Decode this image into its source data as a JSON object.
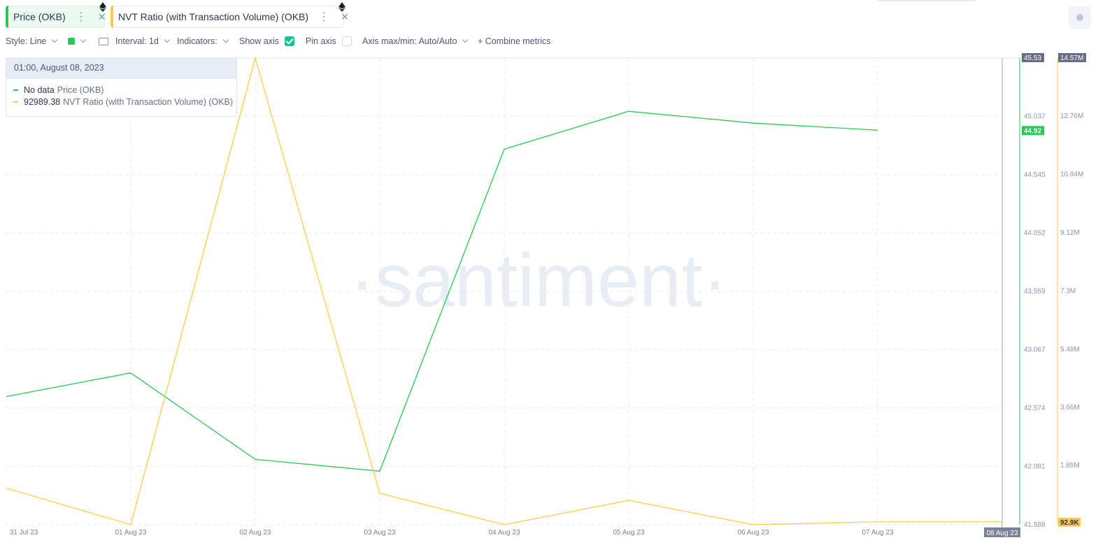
{
  "tabs": [
    {
      "label": "Price (OKB)",
      "color": "#26c953",
      "icon": "ethereum-icon"
    },
    {
      "label": "NVT Ratio (with Transaction Volume) (OKB)",
      "color": "#ffcb47",
      "icon": "ethereum-icon"
    }
  ],
  "toolbar": {
    "style": "Style: Line",
    "interval": "Interval: 1d",
    "indicators": "Indicators:",
    "show_axis": "Show axis",
    "show_axis_checked": true,
    "pin_axis": "Pin axis",
    "pin_axis_checked": false,
    "axis_minmax": "Axis max/min: Auto/Auto",
    "combine": "+ Combine metrics"
  },
  "tooltip": {
    "date": "01:00, August 08, 2023",
    "rows": [
      {
        "value": "No data",
        "name": "Price (OKB)",
        "color": "#26c953"
      },
      {
        "value": "92989.38",
        "name": "NVT Ratio (with Transaction Volume) (OKB)",
        "color": "#ffcb47"
      }
    ]
  },
  "watermark": "·santiment·",
  "chart_data": {
    "type": "line",
    "x": [
      "31 Jul 23",
      "01 Aug 23",
      "02 Aug 23",
      "03 Aug 23",
      "04 Aug 23",
      "05 Aug 23",
      "06 Aug 23",
      "07 Aug 23",
      "08 Aug 23"
    ],
    "series": [
      {
        "name": "Price (OKB)",
        "axis": "left",
        "color": "#26c953",
        "values": [
          42.67,
          42.87,
          42.14,
          42.04,
          44.76,
          45.08,
          44.98,
          44.92,
          null
        ]
      },
      {
        "name": "NVT Ratio (with Transaction Volume) (OKB)",
        "axis": "right",
        "color": "#ffcb47",
        "values": [
          1.14,
          0.0,
          14.57,
          0.98,
          0.0,
          0.76,
          0.0,
          0.09,
          0.09
        ]
      }
    ],
    "left_axis": {
      "ticks": [
        "41.588",
        "42.081",
        "42.574",
        "43.067",
        "43.559",
        "44.052",
        "44.545",
        "45.037"
      ],
      "range": [
        41.588,
        45.53
      ],
      "max_label": "45.53",
      "current_label": "44.92"
    },
    "right_axis": {
      "ticks": [
        "1.85M",
        "3.66M",
        "5.48M",
        "7.3M",
        "9.12M",
        "10.94M",
        "12.76M"
      ],
      "unit": "M",
      "range": [
        0,
        14.57
      ],
      "max_label": "14.57M",
      "current_label": "92.9K"
    },
    "crosshair_label": "08 Aug 23",
    "grid": true
  }
}
